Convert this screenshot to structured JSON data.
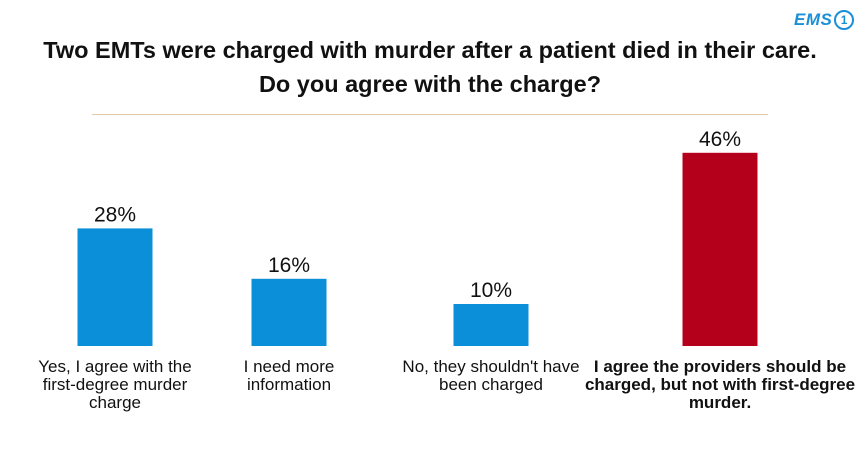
{
  "logo": {
    "text": "EMS",
    "mark": "1"
  },
  "chart_data": {
    "type": "bar",
    "title": "Two EMTs were charged with murder after a patient died in their care. Do you agree with the charge?",
    "categories": [
      "Yes, I agree with the first-degree murder charge",
      "I need more information",
      "No,  they shouldn't have been charged",
      "I agree the providers should be charged, but not with first-degree murder."
    ],
    "values": [
      28,
      16,
      10,
      46
    ],
    "value_labels": [
      "28%",
      "16%",
      "10%",
      "46%"
    ],
    "bar_colors": [
      "#0b8fd8",
      "#0b8fd8",
      "#0b8fd8",
      "#b5001c"
    ],
    "bold_categories": [
      false,
      false,
      false,
      true
    ],
    "grid": false,
    "axes_visible": false
  }
}
